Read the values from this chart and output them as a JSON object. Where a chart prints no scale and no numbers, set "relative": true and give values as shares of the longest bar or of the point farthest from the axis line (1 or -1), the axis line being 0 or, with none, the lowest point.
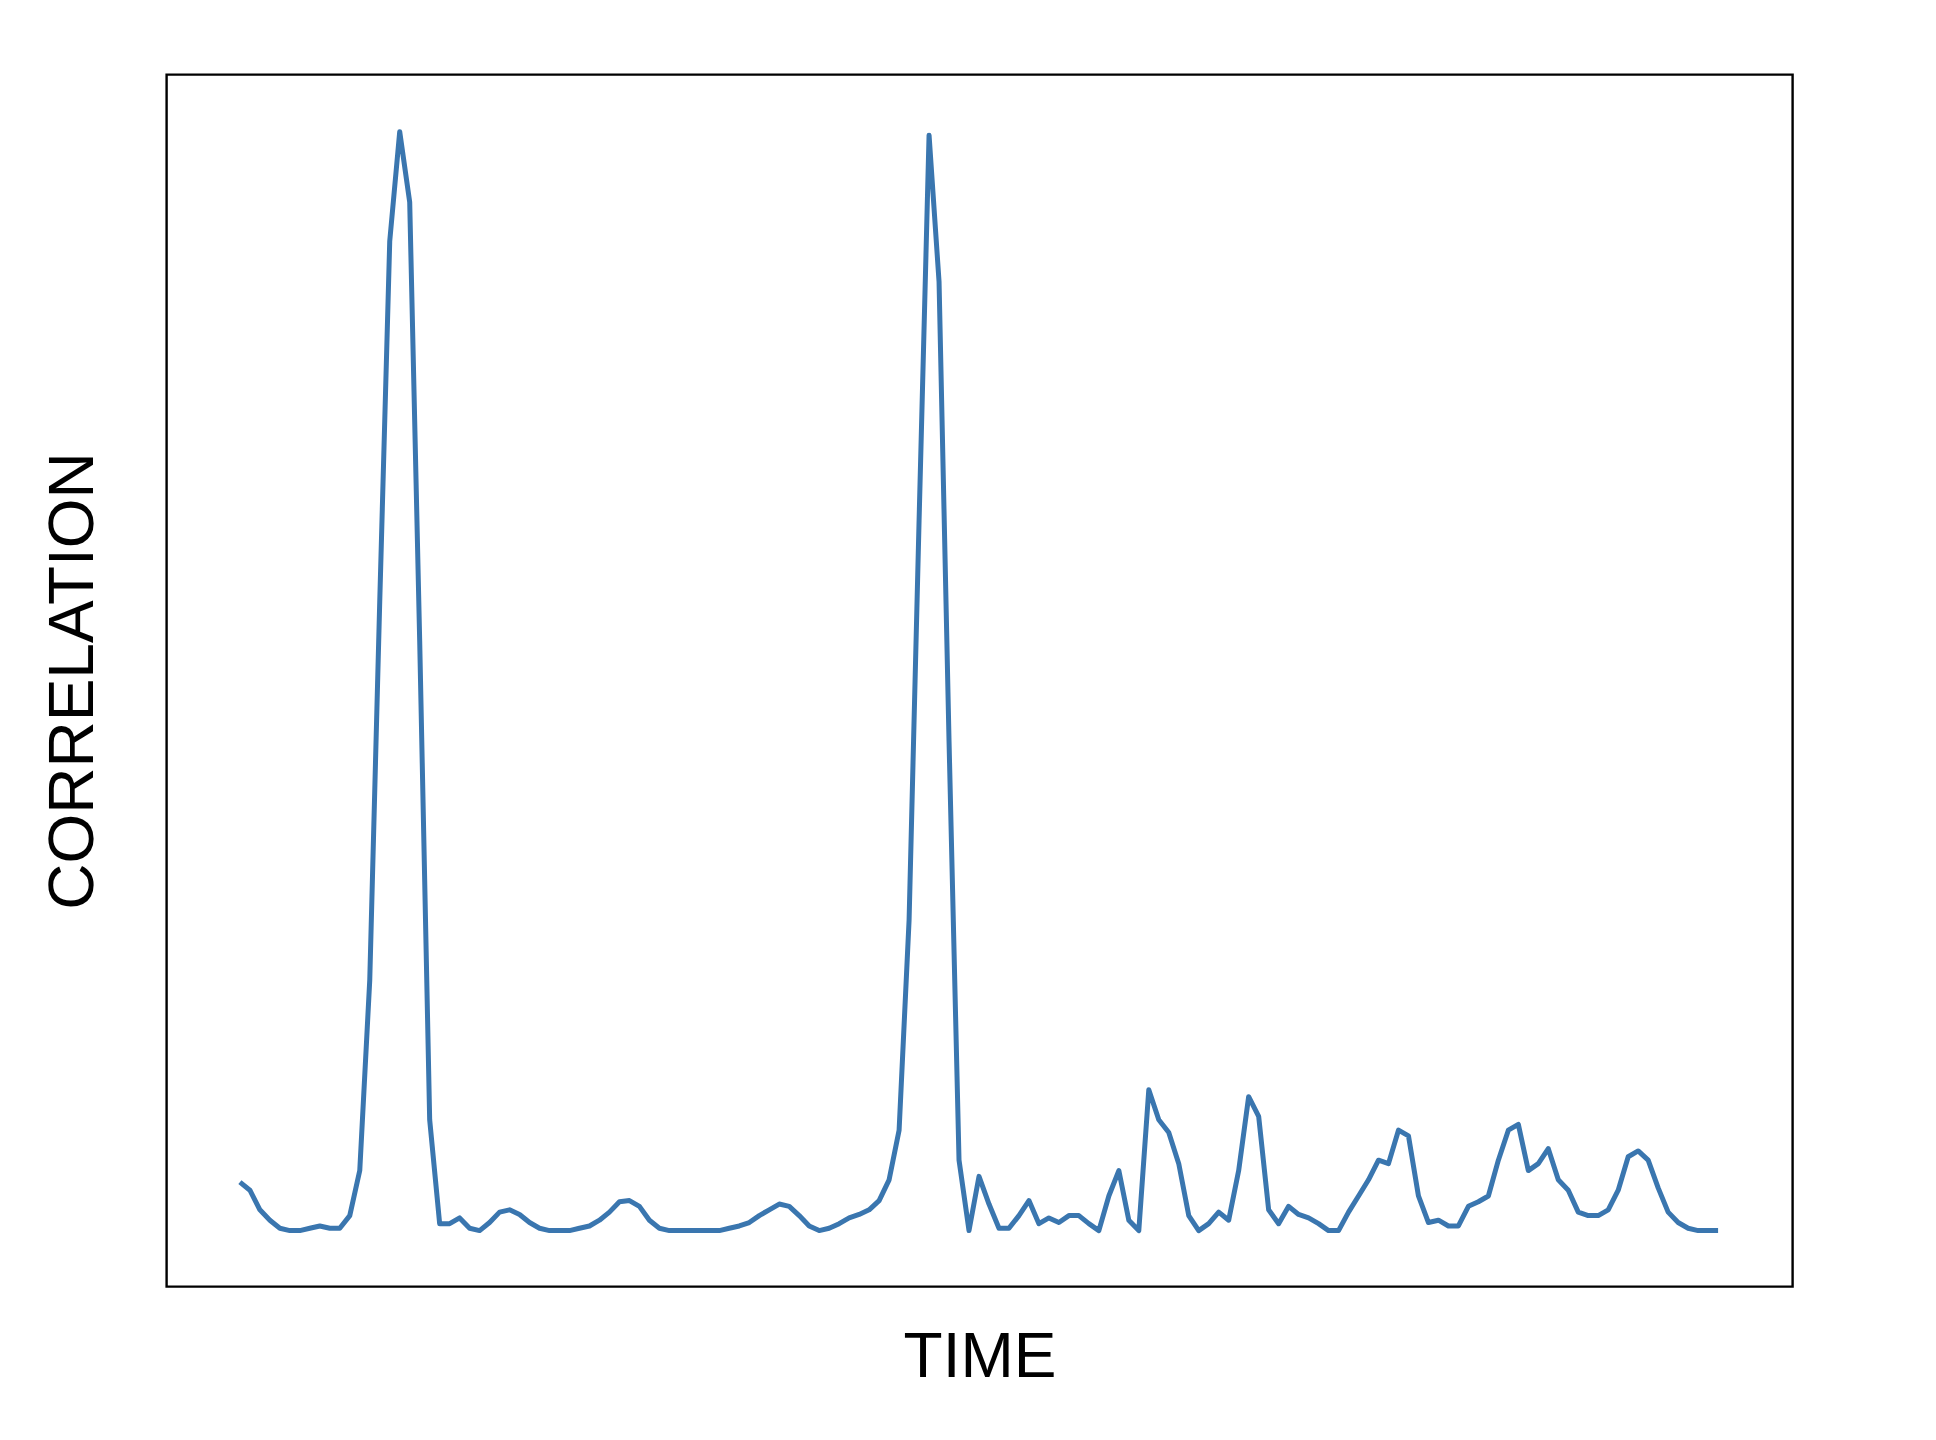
{
  "chart_data": {
    "type": "line",
    "relative": true,
    "xlabel": "TIME",
    "ylabel": "CORRELATION",
    "tick_labels": false,
    "categories": [
      null,
      null,
      null,
      null,
      null,
      null,
      null,
      null,
      null,
      null,
      null,
      null,
      null,
      null,
      null,
      null,
      null,
      null,
      null,
      null,
      null,
      null,
      null,
      null,
      null,
      null,
      null,
      null,
      null,
      null,
      null,
      null,
      null,
      null,
      null,
      null,
      null,
      null,
      null,
      null,
      null,
      null,
      null,
      null,
      null,
      null,
      null,
      null,
      null,
      null,
      null,
      null,
      null,
      null,
      null,
      null,
      null,
      null,
      null,
      null,
      null,
      null,
      null,
      null,
      null,
      null,
      null,
      null,
      null,
      null,
      null,
      null,
      null,
      null,
      null,
      null,
      null,
      null,
      null,
      null,
      null,
      null,
      null,
      null,
      null,
      null,
      null,
      null,
      null,
      null,
      null,
      null,
      null,
      null,
      null,
      null,
      null,
      null,
      null,
      null,
      null,
      null,
      null,
      null,
      null,
      null,
      null,
      null,
      null,
      null,
      null,
      null,
      null,
      null,
      null,
      null,
      null,
      null,
      null,
      null,
      null,
      null,
      null,
      null,
      null,
      null,
      null,
      null,
      null,
      null,
      null,
      null,
      null,
      null,
      null,
      null,
      null,
      null,
      null,
      null,
      null,
      null,
      null,
      null,
      null,
      null,
      null,
      null,
      null
    ],
    "series": [
      {
        "color": "#3a76af",
        "values": [
          0.09,
          0.083,
          0.066,
          0.057,
          0.05,
          0.048,
          0.048,
          0.05,
          0.052,
          0.05,
          0.05,
          0.061,
          0.1,
          0.265,
          0.593,
          0.905,
          1.0,
          0.939,
          0.559,
          0.144,
          0.054,
          0.054,
          0.059,
          0.05,
          0.048,
          0.055,
          0.064,
          0.066,
          0.062,
          0.055,
          0.05,
          0.048,
          0.048,
          0.048,
          0.05,
          0.052,
          0.057,
          0.064,
          0.073,
          0.074,
          0.069,
          0.057,
          0.05,
          0.048,
          0.048,
          0.048,
          0.048,
          0.048,
          0.048,
          0.05,
          0.052,
          0.055,
          0.061,
          0.066,
          0.071,
          0.069,
          0.061,
          0.052,
          0.048,
          0.05,
          0.054,
          0.059,
          0.062,
          0.066,
          0.074,
          0.092,
          0.135,
          0.317,
          0.663,
          0.997,
          0.87,
          0.472,
          0.109,
          0.048,
          0.095,
          0.071,
          0.05,
          0.05,
          0.061,
          0.074,
          0.054,
          0.059,
          0.055,
          0.061,
          0.061,
          0.054,
          0.048,
          0.078,
          0.1,
          0.057,
          0.048,
          0.17,
          0.144,
          0.133,
          0.106,
          0.061,
          0.048,
          0.054,
          0.064,
          0.057,
          0.1,
          0.164,
          0.147,
          0.066,
          0.054,
          0.069,
          0.062,
          0.059,
          0.054,
          0.048,
          0.048,
          0.064,
          0.078,
          0.092,
          0.109,
          0.106,
          0.135,
          0.13,
          0.078,
          0.055,
          0.057,
          0.052,
          0.052,
          0.069,
          0.073,
          0.078,
          0.109,
          0.135,
          0.14,
          0.1,
          0.106,
          0.119,
          0.092,
          0.083,
          0.064,
          0.061,
          0.061,
          0.066,
          0.083,
          0.112,
          0.117,
          0.109,
          0.085,
          0.064,
          0.055,
          0.05,
          0.048,
          0.048,
          0.048
        ]
      }
    ]
  }
}
